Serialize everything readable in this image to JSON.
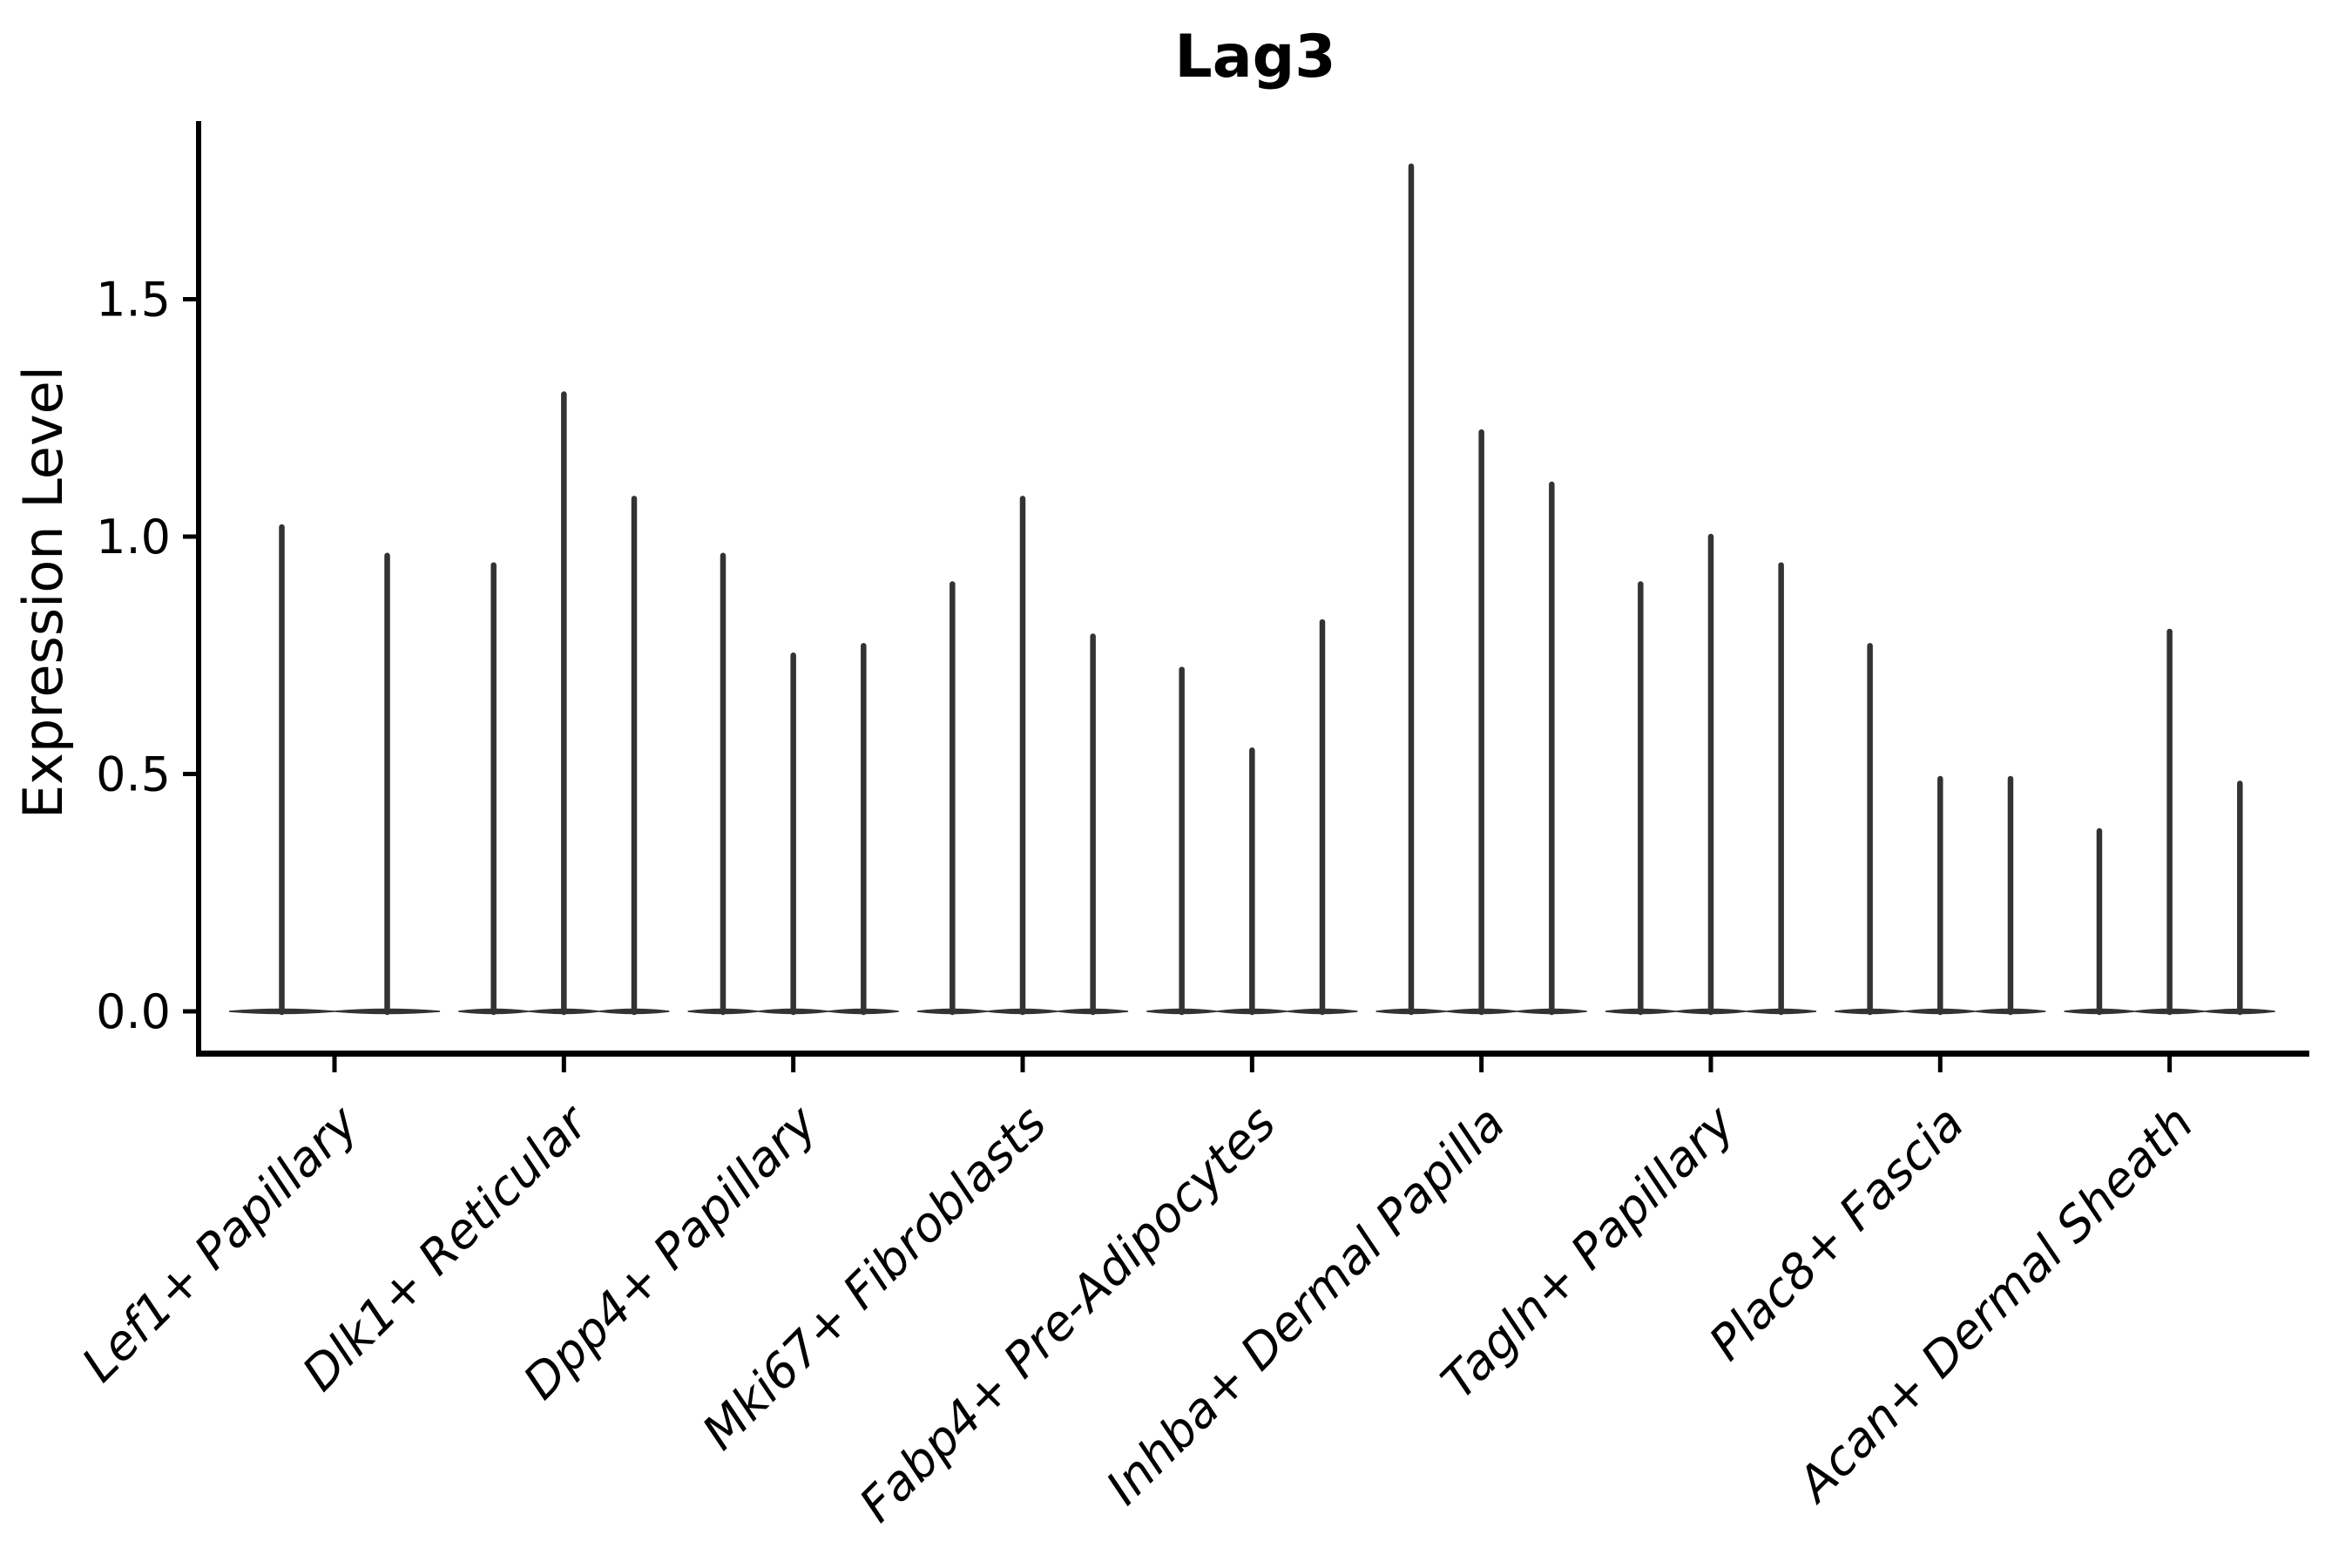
{
  "title": "Lag3",
  "colors": {
    "violin": "#333333",
    "axis": "#000000",
    "text": "#000000",
    "background": "#ffffff"
  },
  "chart_data": {
    "type": "violin",
    "title": "Lag3",
    "ylabel": "Expression Level",
    "xlabel": "",
    "ylim": [
      0.0,
      1.88
    ],
    "yticks": [
      0.0,
      0.5,
      1.0,
      1.5
    ],
    "grid": false,
    "legend": "none",
    "x_tick_label_rotation": 45,
    "x_tick_label_style": "italic",
    "categories": [
      "Lef1+ Papillary",
      "Dlk1+ Reticular",
      "Dpp4+ Papillary",
      "Mki67+ Fibroblasts",
      "Fabp4+ Pre-Adipocytes",
      "Inhba+ Dermal Papilla",
      "Tagln+ Papillary",
      "Plac8+ Fascia",
      "Acan+ Dermal Sheath"
    ],
    "series": [
      {
        "category": "Lef1+ Papillary",
        "violin_max": [
          1.02,
          0.96
        ]
      },
      {
        "category": "Dlk1+ Reticular",
        "violin_max": [
          0.94,
          1.3,
          1.08
        ]
      },
      {
        "category": "Dpp4+ Papillary",
        "violin_max": [
          0.96,
          0.75,
          0.77
        ]
      },
      {
        "category": "Mki67+ Fibroblasts",
        "violin_max": [
          0.9,
          1.08,
          0.79
        ]
      },
      {
        "category": "Fabp4+ Pre-Adipocytes",
        "violin_max": [
          0.72,
          0.55,
          0.82
        ]
      },
      {
        "category": "Inhba+ Dermal Papilla",
        "violin_max": [
          1.78,
          1.22,
          1.11
        ]
      },
      {
        "category": "Tagln+ Papillary",
        "violin_max": [
          0.9,
          1.0,
          0.94
        ]
      },
      {
        "category": "Plac8+ Fascia",
        "violin_max": [
          0.77,
          0.49,
          0.49
        ]
      },
      {
        "category": "Acan+ Dermal Sheath",
        "violin_max": [
          0.38,
          0.8,
          0.48
        ]
      }
    ],
    "violins_all_peak_at_zero": true
  }
}
